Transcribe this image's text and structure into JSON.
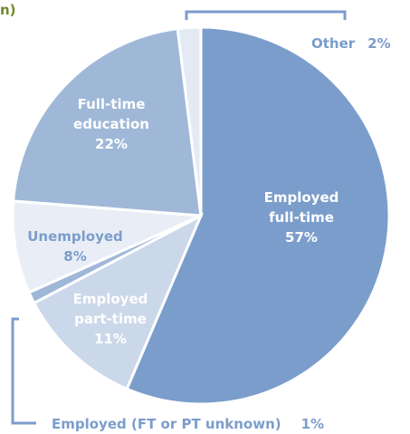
{
  "corner_fragment": "n)",
  "chart_data": {
    "type": "pie",
    "title": "",
    "unit": "%",
    "slices": [
      {
        "key": "employed-full-time",
        "lines": [
          "Employed",
          "full-time"
        ],
        "pct_label": "57%",
        "value": 57,
        "color": "#7b9dcb"
      },
      {
        "key": "employed-part-time",
        "lines": [
          "Employed",
          "part-time"
        ],
        "pct_label": "11%",
        "value": 11,
        "color": "#cbd8ea"
      },
      {
        "key": "employed-unknown",
        "lines": [
          "Employed (FT or PT unknown)"
        ],
        "pct_label": "1%",
        "value": 1,
        "color": "#9fb7d8"
      },
      {
        "key": "unemployed",
        "lines": [
          "Unemployed"
        ],
        "pct_label": "8%",
        "value": 8,
        "color": "#e9eef6"
      },
      {
        "key": "full-time-education",
        "lines": [
          "Full-time",
          "education"
        ],
        "pct_label": "22%",
        "value": 22,
        "color": "#9fb8d7"
      },
      {
        "key": "other",
        "lines": [
          "Other"
        ],
        "pct_label": "2%",
        "value": 2,
        "color": "#e3eaf4"
      }
    ]
  }
}
